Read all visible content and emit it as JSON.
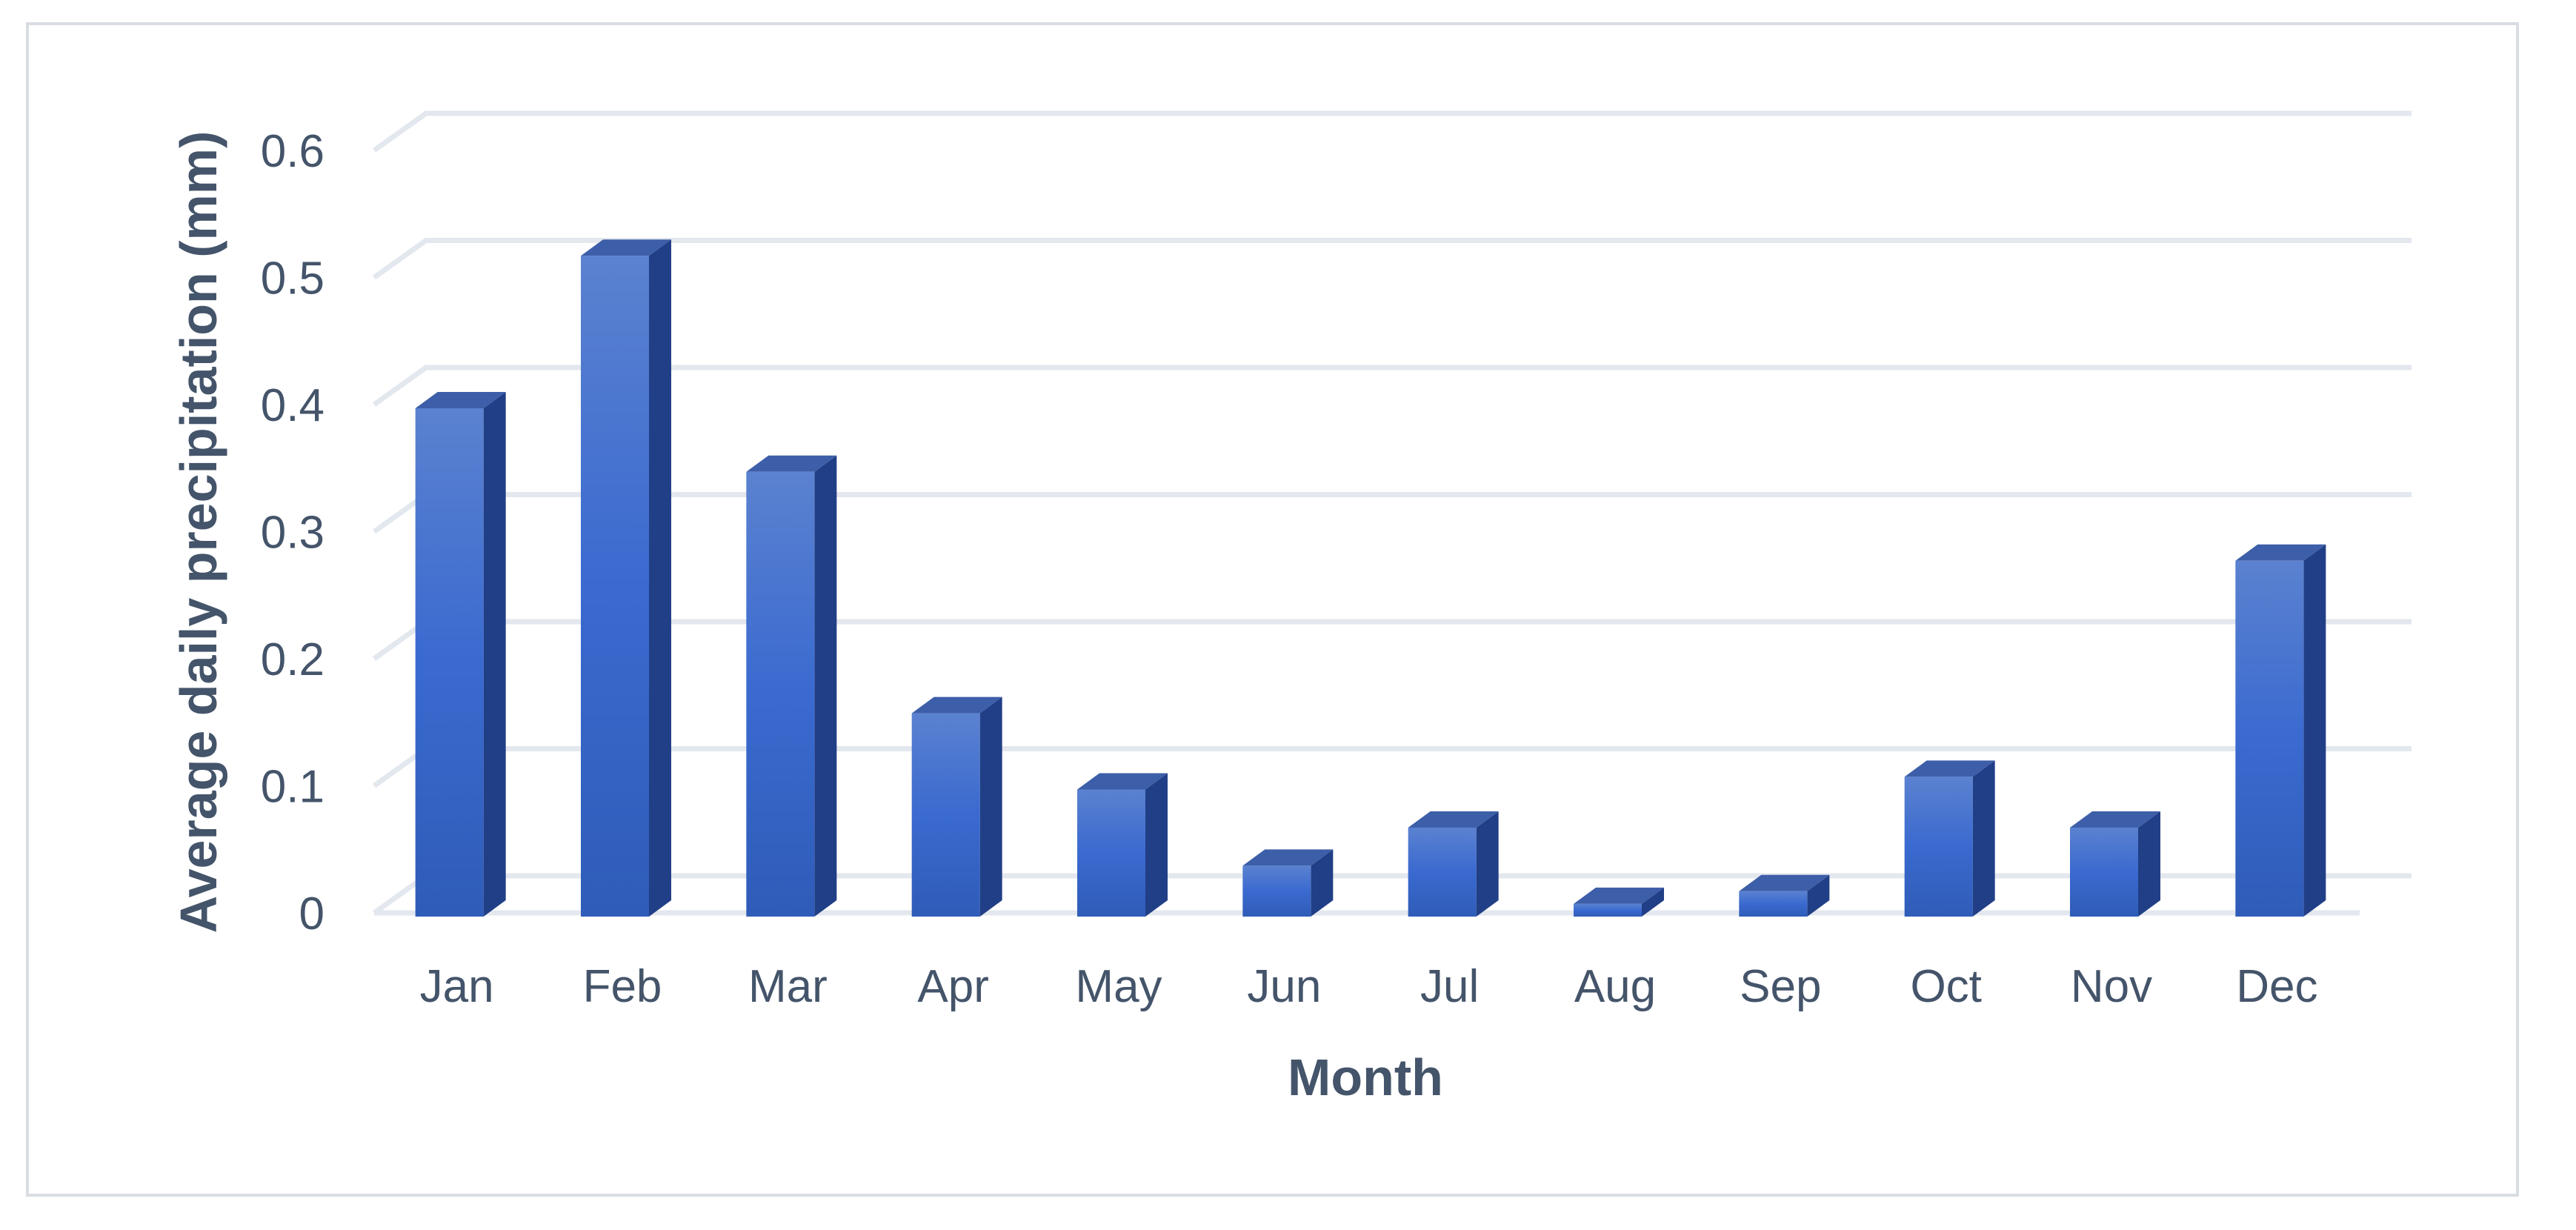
{
  "chart_data": {
    "type": "bar",
    "style": "3d-column",
    "title": "",
    "xlabel": "Month",
    "ylabel": "Average daily precipitation (mm)",
    "categories": [
      "Jan",
      "Feb",
      "Mar",
      "Apr",
      "May",
      "Jun",
      "Jul",
      "Aug",
      "Sep",
      "Oct",
      "Nov",
      "Dec"
    ],
    "series": [
      {
        "values": [
          0.4,
          0.52,
          0.35,
          0.16,
          0.1,
          0.04,
          0.07,
          0.01,
          0.02,
          0.11,
          0.07,
          0.28
        ]
      }
    ],
    "ylim": [
      0,
      0.6
    ],
    "yticks": [
      0,
      0.1,
      0.2,
      0.3,
      0.4,
      0.5,
      0.6
    ],
    "ytick_labels": [
      "0",
      "0.1",
      "0.2",
      "0.3",
      "0.4",
      "0.5",
      "0.6"
    ],
    "grid": true,
    "legend": "none",
    "colors": {
      "bar_front_top": "#5b82d0",
      "bar_front_mid": "#3a6ad0",
      "bar_front_bottom": "#2f5cb8",
      "bar_side": "#213f86",
      "bar_top": "#3d5ea8",
      "grid": "#e3e7ee",
      "text": "#44546a"
    }
  }
}
